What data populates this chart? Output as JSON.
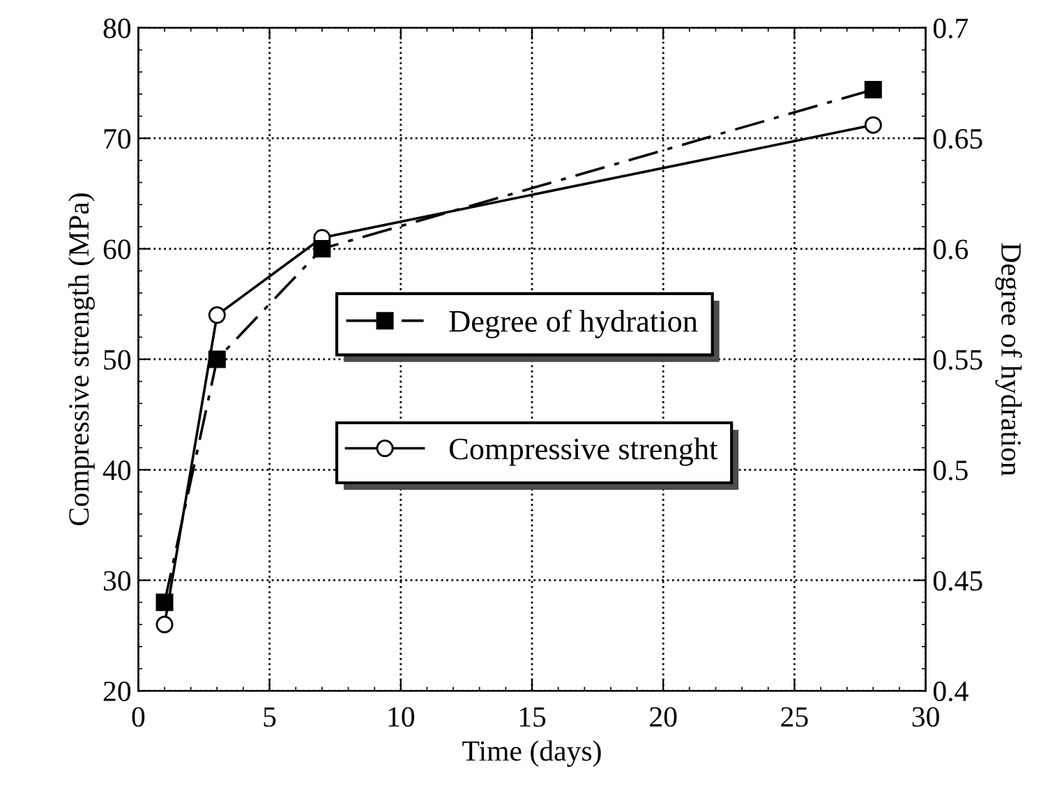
{
  "chart_data": {
    "type": "line",
    "xlabel": "Time (days)",
    "ylabel": "Compressive strength (MPa)",
    "y2label": "Degree of hydration",
    "xlim": [
      0,
      30
    ],
    "xticks": [
      0,
      5,
      10,
      15,
      20,
      25,
      30
    ],
    "ylim": [
      20,
      80
    ],
    "yticks": [
      20,
      30,
      40,
      50,
      60,
      70,
      80
    ],
    "y2lim": [
      0.4,
      0.7
    ],
    "y2ticks": [
      0.4,
      0.45,
      0.5,
      0.55,
      0.6,
      0.65,
      0.7
    ],
    "grid": true,
    "legend": "center",
    "series": [
      {
        "name": "Degree of hydration",
        "color": "#000000",
        "axis": "y2",
        "marker": "square",
        "line_style": "dashed",
        "x": [
          1,
          3,
          7,
          28
        ],
        "values": [
          0.44,
          0.55,
          0.6,
          0.672
        ]
      },
      {
        "name": "Compressive strenght",
        "color": "#000000",
        "axis": "y",
        "marker": "circle",
        "line_style": "solid",
        "x": [
          1,
          3,
          7,
          28
        ],
        "values": [
          26,
          54,
          61,
          71.2
        ]
      }
    ]
  }
}
